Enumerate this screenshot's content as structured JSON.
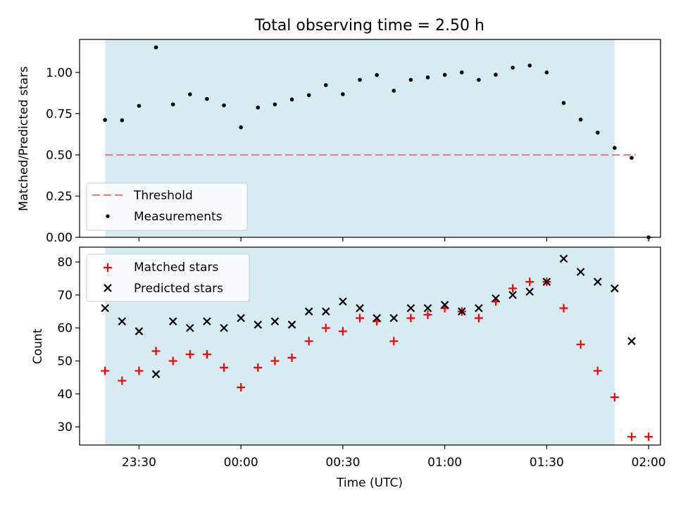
{
  "chart_data": [
    {
      "type": "scatter",
      "title": "Total observing time = 2.50 h",
      "xlabel": "",
      "ylabel": "Matched/Predicted stars",
      "ylim": [
        0,
        1.2
      ],
      "yticks": [
        0.0,
        0.25,
        0.5,
        0.75,
        1.0
      ],
      "ytick_labels": [
        "0.00",
        "0.25",
        "0.50",
        "0.75",
        "1.00"
      ],
      "observing_window": [
        "23:20",
        "01:50"
      ],
      "legend": {
        "placement": "lower-left",
        "entries": [
          "Threshold",
          "Measurements"
        ]
      },
      "threshold": {
        "name": "Threshold",
        "value": 0.5,
        "x_range": [
          "23:20",
          "01:55"
        ],
        "color": "#f08080",
        "style": "dashed"
      },
      "x": [
        "23:20",
        "23:25",
        "23:30",
        "23:35",
        "23:40",
        "23:45",
        "23:50",
        "23:55",
        "00:00",
        "00:05",
        "00:10",
        "00:15",
        "00:20",
        "00:25",
        "00:30",
        "00:35",
        "00:40",
        "00:45",
        "00:50",
        "00:55",
        "01:00",
        "01:05",
        "01:10",
        "01:15",
        "01:20",
        "01:25",
        "01:30",
        "01:35",
        "01:40",
        "01:45",
        "01:50",
        "01:55",
        "02:00"
      ],
      "series": [
        {
          "name": "Measurements",
          "color": "#000000",
          "marker": "dot",
          "values": [
            0.712,
            0.71,
            0.797,
            1.152,
            0.806,
            0.867,
            0.839,
            0.8,
            0.667,
            0.787,
            0.806,
            0.836,
            0.862,
            0.923,
            0.868,
            0.955,
            0.984,
            0.889,
            0.955,
            0.97,
            0.985,
            1.0,
            0.955,
            0.986,
            1.029,
            1.042,
            1.0,
            0.815,
            0.714,
            0.635,
            0.542,
            0.482,
            0.0
          ]
        }
      ]
    },
    {
      "type": "scatter",
      "title": "",
      "xlabel": "Time (UTC)",
      "ylabel": "Count",
      "ylim": [
        24.5,
        84.5
      ],
      "yticks": [
        30,
        40,
        50,
        60,
        70,
        80
      ],
      "ytick_labels": [
        "30",
        "40",
        "50",
        "60",
        "70",
        "80"
      ],
      "x_tick_labels": [
        "23:30",
        "00:00",
        "00:30",
        "01:00",
        "01:30",
        "02:00"
      ],
      "x_ticks": [
        "23:30",
        "00:00",
        "00:30",
        "01:00",
        "01:30",
        "02:00"
      ],
      "observing_window": [
        "23:20",
        "01:50"
      ],
      "legend": {
        "placement": "top-left",
        "entries": [
          "Matched stars",
          "Predicted stars"
        ]
      },
      "x": [
        "23:20",
        "23:25",
        "23:30",
        "23:35",
        "23:40",
        "23:45",
        "23:50",
        "23:55",
        "00:00",
        "00:05",
        "00:10",
        "00:15",
        "00:20",
        "00:25",
        "00:30",
        "00:35",
        "00:40",
        "00:45",
        "00:50",
        "00:55",
        "01:00",
        "01:05",
        "01:10",
        "01:15",
        "01:20",
        "01:25",
        "01:30",
        "01:35",
        "01:40",
        "01:45",
        "01:50",
        "01:55",
        "02:00"
      ],
      "series": [
        {
          "name": "Matched stars",
          "color": "#ff0000",
          "marker": "plus",
          "values": [
            47,
            44,
            47,
            53,
            50,
            52,
            52,
            48,
            42,
            48,
            50,
            51,
            56,
            60,
            59,
            63,
            62,
            56,
            63,
            64,
            66,
            65,
            63,
            68,
            72,
            74,
            74,
            66,
            55,
            47,
            39,
            27,
            27
          ]
        },
        {
          "name": "Predicted stars",
          "color": "#000000",
          "marker": "x",
          "values": [
            66,
            62,
            59,
            46,
            62,
            60,
            62,
            60,
            63,
            61,
            62,
            61,
            65,
            65,
            68,
            66,
            63,
            63,
            66,
            66,
            67,
            65,
            66,
            69,
            70,
            71,
            74,
            81,
            77,
            74,
            72,
            56,
            null
          ]
        }
      ]
    }
  ],
  "colors": {
    "window_fill": "#add8e6"
  }
}
